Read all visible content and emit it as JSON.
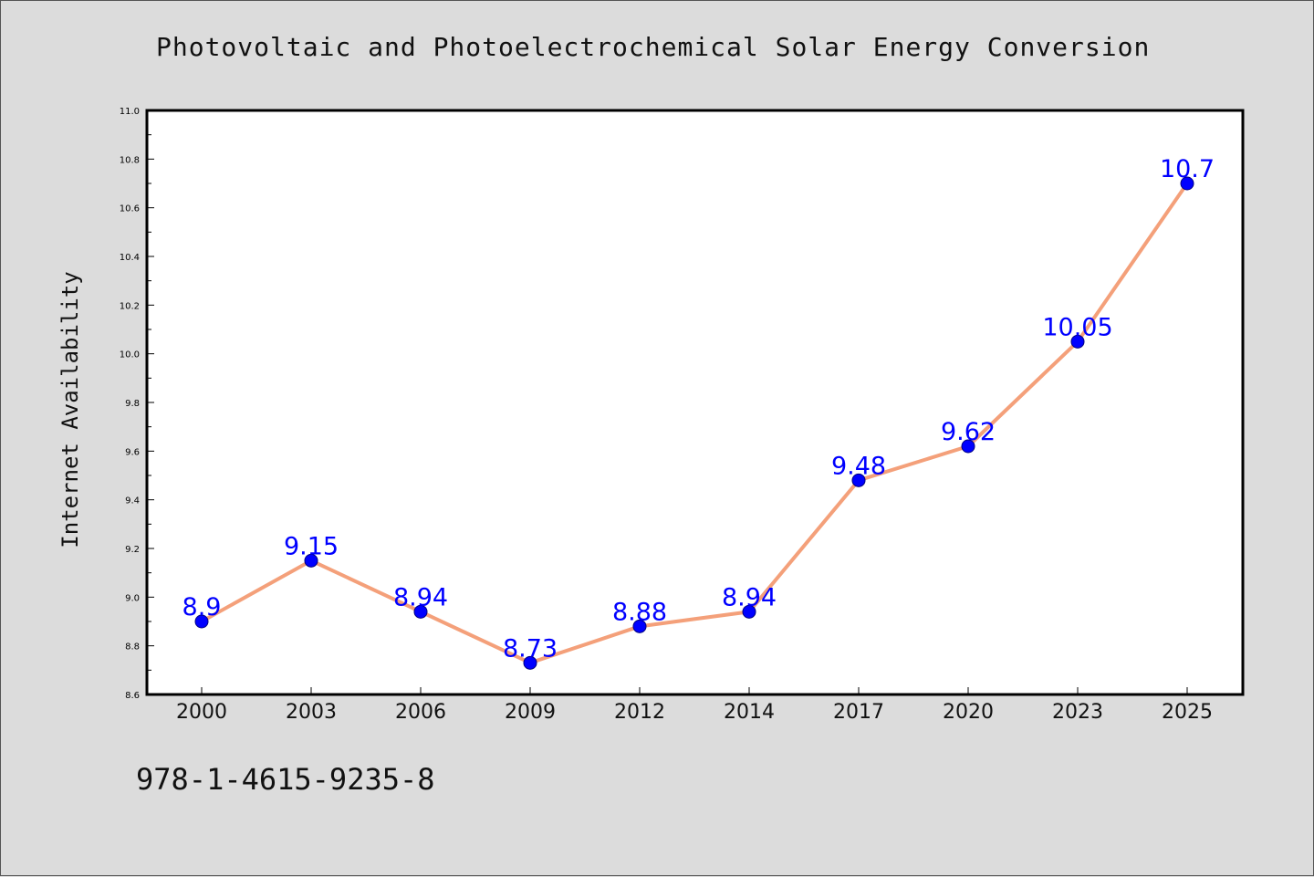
{
  "chart_data": {
    "type": "line",
    "title": "Photovoltaic and Photoelectrochemical Solar Energy Conversion",
    "xlabel": "",
    "ylabel": "Internet Availability",
    "categories": [
      "2000",
      "2003",
      "2006",
      "2009",
      "2012",
      "2014",
      "2017",
      "2020",
      "2023",
      "2025"
    ],
    "series": [
      {
        "values": [
          8.9,
          9.15,
          8.94,
          8.73,
          8.88,
          8.94,
          9.48,
          9.62,
          10.05,
          10.7
        ],
        "data_labels": [
          "8.9",
          "9.15",
          "8.94",
          "8.73",
          "8.88",
          "8.94",
          "9.48",
          "9.62",
          "10.05",
          "10.7"
        ]
      }
    ],
    "ylim": [
      8.6,
      11.0
    ],
    "yticks": [
      "8.6",
      "8.8",
      "9.0",
      "9.2",
      "9.4",
      "9.6",
      "9.8",
      "10.0",
      "10.2",
      "10.4",
      "10.6",
      "10.8",
      "11.0"
    ],
    "grid": false,
    "legend": "none",
    "footer_text": "978-1-4615-9235-8",
    "colors": {
      "line": "#f4a07a",
      "marker": "#0000ff",
      "marker_edge": "#000080",
      "data_label": "#0000ff",
      "background": "#dcdcdc",
      "plot_background": "#ffffff"
    }
  }
}
